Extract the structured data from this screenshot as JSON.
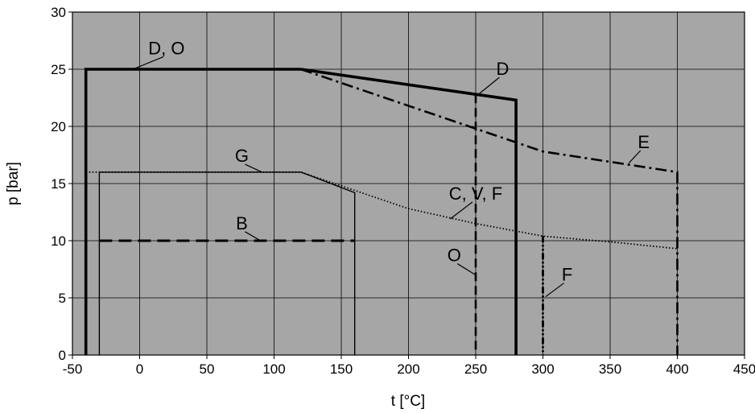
{
  "chart_data": {
    "type": "line",
    "title": "",
    "xlabel": "t [°C]",
    "ylabel": "p [bar]",
    "xlim": [
      -50,
      450
    ],
    "ylim": [
      0,
      30
    ],
    "x_ticks": [
      -50,
      0,
      50,
      100,
      150,
      200,
      250,
      300,
      350,
      400,
      450
    ],
    "y_ticks": [
      0,
      5,
      10,
      15,
      20,
      25,
      30
    ],
    "grid": true,
    "plot_background": "#a6a6a6",
    "series": [
      {
        "name": "D, O",
        "style": "solid-thick",
        "points": [
          [
            -40,
            0
          ],
          [
            -40,
            25
          ],
          [
            120,
            25
          ]
        ]
      },
      {
        "name": "D",
        "style": "solid-thick",
        "points": [
          [
            120,
            25
          ],
          [
            250,
            22.8
          ],
          [
            280,
            22.3
          ],
          [
            280,
            0
          ]
        ]
      },
      {
        "name": "O",
        "style": "dashed",
        "points": [
          [
            250,
            22.8
          ],
          [
            250,
            0
          ]
        ]
      },
      {
        "name": "E",
        "style": "dash-dot",
        "points": [
          [
            120,
            25
          ],
          [
            250,
            19.8
          ],
          [
            300,
            17.8
          ],
          [
            400,
            16
          ],
          [
            400,
            0
          ]
        ]
      },
      {
        "name": "G",
        "style": "solid-thin",
        "points": [
          [
            -30,
            0
          ],
          [
            -30,
            16
          ],
          [
            120,
            16
          ],
          [
            160,
            14.2
          ],
          [
            160,
            0
          ]
        ]
      },
      {
        "name": "C, V, F",
        "style": "dotted",
        "points": [
          [
            -40,
            16
          ],
          [
            120,
            16
          ],
          [
            200,
            12.8
          ],
          [
            250,
            11.5
          ],
          [
            300,
            10.4
          ],
          [
            350,
            9.9
          ],
          [
            400,
            9.3
          ]
        ]
      },
      {
        "name": "F",
        "style": "dash-dot-dot",
        "points": [
          [
            300,
            10.4
          ],
          [
            300,
            0
          ]
        ]
      },
      {
        "name": "B",
        "style": "dashed-long",
        "points": [
          [
            -30,
            10
          ],
          [
            160,
            10
          ]
        ]
      }
    ],
    "labels": [
      {
        "text": "D, O",
        "x": 20,
        "y": 26.3,
        "leader_to": [
          -5,
          25
        ]
      },
      {
        "text": "D",
        "x": 270,
        "y": 24.5,
        "leader_to": [
          252,
          22.8
        ]
      },
      {
        "text": "E",
        "x": 375,
        "y": 18.1,
        "leader_to": [
          364,
          16.8
        ]
      },
      {
        "text": "G",
        "x": 76,
        "y": 16.9,
        "leader_to": [
          91,
          16
        ]
      },
      {
        "text": "C, V, F",
        "x": 250,
        "y": 13.6,
        "leader_to": [
          231,
          11.9
        ]
      },
      {
        "text": "B",
        "x": 76,
        "y": 11.0,
        "leader_to": [
          90,
          10
        ]
      },
      {
        "text": "O",
        "x": 234,
        "y": 8.2,
        "leader_to": [
          250,
          7
        ]
      },
      {
        "text": "F",
        "x": 318,
        "y": 6.5,
        "leader_to": [
          302,
          5.1
        ]
      }
    ]
  }
}
